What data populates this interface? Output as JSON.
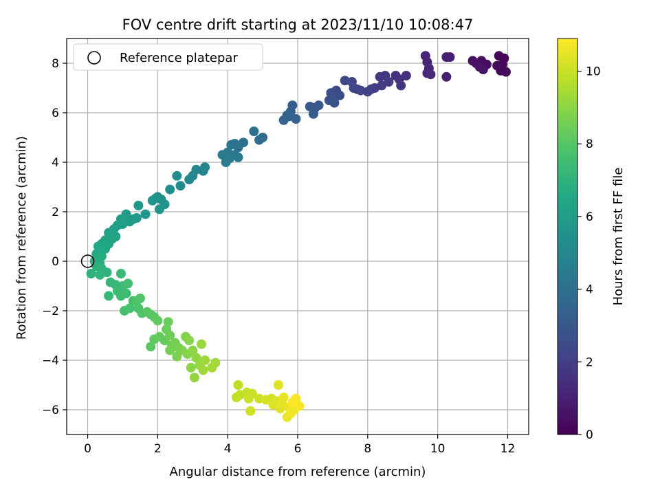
{
  "chart_data": {
    "type": "scatter",
    "title": "FOV centre drift starting at 2023/11/10 10:08:47",
    "xlabel": "Angular distance from reference (arcmin)",
    "ylabel": "Rotation from reference (arcmin)",
    "xlim": [
      -0.6,
      12.6
    ],
    "ylim": [
      -7.0,
      9.0
    ],
    "xticks": [
      0,
      2,
      4,
      6,
      8,
      10,
      12
    ],
    "yticks": [
      -6,
      -4,
      -2,
      0,
      2,
      4,
      6,
      8
    ],
    "grid": true,
    "legend": {
      "placement": "top-left",
      "entries": [
        "Reference platepar"
      ]
    },
    "reference_point": {
      "x": 0,
      "y": 0,
      "label": "Reference platepar"
    },
    "colorbar": {
      "label": "Hours from first FF file",
      "colormap": "viridis",
      "range": [
        0,
        10.9
      ],
      "ticks": [
        0,
        2,
        4,
        6,
        8,
        10
      ]
    },
    "points": [
      {
        "x": 11.9,
        "y": 8.2,
        "t": 0.1
      },
      {
        "x": 11.75,
        "y": 8.3,
        "t": 0.1
      },
      {
        "x": 11.85,
        "y": 7.95,
        "t": 0.2
      },
      {
        "x": 11.8,
        "y": 7.7,
        "t": 0.2
      },
      {
        "x": 11.95,
        "y": 7.65,
        "t": 0.3
      },
      {
        "x": 11.7,
        "y": 7.9,
        "t": 0.3
      },
      {
        "x": 11.4,
        "y": 7.95,
        "t": 0.4
      },
      {
        "x": 11.25,
        "y": 8.1,
        "t": 0.4
      },
      {
        "x": 11.1,
        "y": 8.0,
        "t": 0.5
      },
      {
        "x": 11.0,
        "y": 8.1,
        "t": 0.5
      },
      {
        "x": 11.3,
        "y": 7.75,
        "t": 0.6
      },
      {
        "x": 11.2,
        "y": 7.85,
        "t": 0.6
      },
      {
        "x": 10.35,
        "y": 8.25,
        "t": 0.9
      },
      {
        "x": 10.25,
        "y": 8.25,
        "t": 0.9
      },
      {
        "x": 10.25,
        "y": 7.45,
        "t": 1.0
      },
      {
        "x": 9.65,
        "y": 8.3,
        "t": 1.1
      },
      {
        "x": 9.7,
        "y": 8.05,
        "t": 1.1
      },
      {
        "x": 9.75,
        "y": 7.8,
        "t": 1.2
      },
      {
        "x": 9.7,
        "y": 7.6,
        "t": 1.2
      },
      {
        "x": 9.8,
        "y": 7.55,
        "t": 1.3
      },
      {
        "x": 9.1,
        "y": 7.5,
        "t": 1.5
      },
      {
        "x": 8.8,
        "y": 7.5,
        "t": 1.6
      },
      {
        "x": 8.9,
        "y": 7.35,
        "t": 1.6
      },
      {
        "x": 8.95,
        "y": 7.1,
        "t": 1.7
      },
      {
        "x": 8.5,
        "y": 7.5,
        "t": 1.8
      },
      {
        "x": 8.35,
        "y": 7.45,
        "t": 1.8
      },
      {
        "x": 8.6,
        "y": 7.25,
        "t": 1.9
      },
      {
        "x": 8.4,
        "y": 7.1,
        "t": 1.9
      },
      {
        "x": 8.2,
        "y": 7.0,
        "t": 2.0
      },
      {
        "x": 8.1,
        "y": 6.95,
        "t": 2.0
      },
      {
        "x": 8.0,
        "y": 6.85,
        "t": 2.1
      },
      {
        "x": 7.8,
        "y": 6.9,
        "t": 2.2
      },
      {
        "x": 7.7,
        "y": 6.95,
        "t": 2.2
      },
      {
        "x": 7.6,
        "y": 7.0,
        "t": 2.3
      },
      {
        "x": 7.55,
        "y": 7.25,
        "t": 2.3
      },
      {
        "x": 7.35,
        "y": 7.3,
        "t": 2.4
      },
      {
        "x": 7.1,
        "y": 6.9,
        "t": 2.5
      },
      {
        "x": 7.2,
        "y": 6.7,
        "t": 2.5
      },
      {
        "x": 6.95,
        "y": 6.8,
        "t": 2.6
      },
      {
        "x": 7.0,
        "y": 6.6,
        "t": 2.6
      },
      {
        "x": 7.05,
        "y": 6.4,
        "t": 2.7
      },
      {
        "x": 6.9,
        "y": 6.5,
        "t": 2.7
      },
      {
        "x": 6.6,
        "y": 6.3,
        "t": 3.0
      },
      {
        "x": 6.5,
        "y": 6.2,
        "t": 3.0
      },
      {
        "x": 6.35,
        "y": 6.25,
        "t": 3.1
      },
      {
        "x": 6.45,
        "y": 5.95,
        "t": 3.1
      },
      {
        "x": 5.85,
        "y": 6.3,
        "t": 3.3
      },
      {
        "x": 5.8,
        "y": 6.05,
        "t": 3.3
      },
      {
        "x": 5.75,
        "y": 5.85,
        "t": 3.4
      },
      {
        "x": 5.95,
        "y": 5.75,
        "t": 3.4
      },
      {
        "x": 5.6,
        "y": 5.7,
        "t": 3.5
      },
      {
        "x": 5.7,
        "y": 5.9,
        "t": 3.5
      },
      {
        "x": 5.0,
        "y": 5.0,
        "t": 3.9
      },
      {
        "x": 4.9,
        "y": 4.9,
        "t": 3.9
      },
      {
        "x": 4.75,
        "y": 5.25,
        "t": 4.0
      },
      {
        "x": 4.45,
        "y": 4.8,
        "t": 4.1
      },
      {
        "x": 4.3,
        "y": 4.6,
        "t": 4.1
      },
      {
        "x": 4.2,
        "y": 4.75,
        "t": 4.2
      },
      {
        "x": 4.1,
        "y": 4.7,
        "t": 4.2
      },
      {
        "x": 4.0,
        "y": 4.4,
        "t": 4.3
      },
      {
        "x": 4.2,
        "y": 4.3,
        "t": 4.3
      },
      {
        "x": 4.3,
        "y": 4.2,
        "t": 4.4
      },
      {
        "x": 3.85,
        "y": 4.3,
        "t": 4.4
      },
      {
        "x": 4.05,
        "y": 4.15,
        "t": 4.5
      },
      {
        "x": 3.95,
        "y": 4.0,
        "t": 4.5
      },
      {
        "x": 3.35,
        "y": 3.8,
        "t": 4.9
      },
      {
        "x": 3.3,
        "y": 3.65,
        "t": 4.9
      },
      {
        "x": 3.1,
        "y": 3.7,
        "t": 5.0
      },
      {
        "x": 3.0,
        "y": 3.45,
        "t": 5.0
      },
      {
        "x": 2.9,
        "y": 3.3,
        "t": 5.1
      },
      {
        "x": 2.55,
        "y": 3.45,
        "t": 5.2
      },
      {
        "x": 2.65,
        "y": 3.05,
        "t": 5.2
      },
      {
        "x": 2.35,
        "y": 2.9,
        "t": 5.3
      },
      {
        "x": 2.1,
        "y": 2.5,
        "t": 5.4
      },
      {
        "x": 2.0,
        "y": 2.6,
        "t": 5.4
      },
      {
        "x": 1.95,
        "y": 2.55,
        "t": 5.5
      },
      {
        "x": 2.2,
        "y": 2.3,
        "t": 5.5
      },
      {
        "x": 2.05,
        "y": 2.1,
        "t": 5.6
      },
      {
        "x": 1.85,
        "y": 2.45,
        "t": 5.6
      },
      {
        "x": 1.45,
        "y": 2.25,
        "t": 5.7
      },
      {
        "x": 1.65,
        "y": 1.9,
        "t": 5.7
      },
      {
        "x": 1.4,
        "y": 1.75,
        "t": 5.8
      },
      {
        "x": 1.3,
        "y": 1.7,
        "t": 5.8
      },
      {
        "x": 1.1,
        "y": 1.9,
        "t": 5.9
      },
      {
        "x": 1.2,
        "y": 1.6,
        "t": 5.9
      },
      {
        "x": 0.95,
        "y": 1.7,
        "t": 6.0
      },
      {
        "x": 1.0,
        "y": 1.5,
        "t": 6.0
      },
      {
        "x": 0.85,
        "y": 1.45,
        "t": 6.1
      },
      {
        "x": 0.75,
        "y": 1.3,
        "t": 6.1
      },
      {
        "x": 0.6,
        "y": 1.15,
        "t": 6.2
      },
      {
        "x": 0.8,
        "y": 1.0,
        "t": 6.2
      },
      {
        "x": 0.7,
        "y": 0.9,
        "t": 6.3
      },
      {
        "x": 0.5,
        "y": 0.85,
        "t": 6.3
      },
      {
        "x": 0.6,
        "y": 0.7,
        "t": 6.4
      },
      {
        "x": 0.4,
        "y": 0.7,
        "t": 6.4
      },
      {
        "x": 0.3,
        "y": 0.6,
        "t": 6.5
      },
      {
        "x": 0.5,
        "y": 0.5,
        "t": 6.5
      },
      {
        "x": 0.35,
        "y": 0.4,
        "t": 6.6
      },
      {
        "x": 0.25,
        "y": 0.3,
        "t": 6.6
      },
      {
        "x": 0.4,
        "y": 0.2,
        "t": 6.7
      },
      {
        "x": 0.3,
        "y": 0.1,
        "t": 6.7
      },
      {
        "x": 0.2,
        "y": 0.0,
        "t": 6.8
      },
      {
        "x": 0.35,
        "y": -0.1,
        "t": 6.8
      },
      {
        "x": 0.25,
        "y": -0.2,
        "t": 6.9
      },
      {
        "x": 0.1,
        "y": -0.5,
        "t": 6.9
      },
      {
        "x": 0.4,
        "y": -0.3,
        "t": 7.0
      },
      {
        "x": 0.55,
        "y": -0.45,
        "t": 7.0
      },
      {
        "x": 0.35,
        "y": -0.55,
        "t": 7.1
      },
      {
        "x": 0.65,
        "y": -0.85,
        "t": 7.2
      },
      {
        "x": 0.6,
        "y": -1.4,
        "t": 7.2
      },
      {
        "x": 0.8,
        "y": -0.95,
        "t": 7.3
      },
      {
        "x": 0.95,
        "y": -0.5,
        "t": 7.3
      },
      {
        "x": 0.85,
        "y": -1.2,
        "t": 7.4
      },
      {
        "x": 1.0,
        "y": -1.0,
        "t": 7.4
      },
      {
        "x": 0.95,
        "y": -1.4,
        "t": 7.5
      },
      {
        "x": 1.1,
        "y": -1.3,
        "t": 7.5
      },
      {
        "x": 1.05,
        "y": -2.0,
        "t": 7.6
      },
      {
        "x": 1.15,
        "y": -0.9,
        "t": 7.6
      },
      {
        "x": 1.3,
        "y": -1.6,
        "t": 7.7
      },
      {
        "x": 1.2,
        "y": -1.9,
        "t": 7.7
      },
      {
        "x": 1.4,
        "y": -1.6,
        "t": 7.8
      },
      {
        "x": 1.45,
        "y": -1.9,
        "t": 7.8
      },
      {
        "x": 1.5,
        "y": -1.5,
        "t": 7.9
      },
      {
        "x": 1.55,
        "y": -2.1,
        "t": 7.9
      },
      {
        "x": 1.7,
        "y": -2.05,
        "t": 8.0
      },
      {
        "x": 1.8,
        "y": -2.15,
        "t": 8.0
      },
      {
        "x": 1.9,
        "y": -2.25,
        "t": 8.1
      },
      {
        "x": 1.8,
        "y": -3.45,
        "t": 8.1
      },
      {
        "x": 2.0,
        "y": -2.4,
        "t": 8.2
      },
      {
        "x": 1.9,
        "y": -3.15,
        "t": 8.2
      },
      {
        "x": 2.05,
        "y": -3.05,
        "t": 8.3
      },
      {
        "x": 2.2,
        "y": -3.2,
        "t": 8.3
      },
      {
        "x": 2.3,
        "y": -2.45,
        "t": 8.4
      },
      {
        "x": 2.25,
        "y": -2.75,
        "t": 8.4
      },
      {
        "x": 2.35,
        "y": -3.0,
        "t": 8.5
      },
      {
        "x": 2.4,
        "y": -3.4,
        "t": 8.5
      },
      {
        "x": 2.5,
        "y": -3.3,
        "t": 8.6
      },
      {
        "x": 2.35,
        "y": -3.6,
        "t": 8.6
      },
      {
        "x": 2.6,
        "y": -3.5,
        "t": 8.7
      },
      {
        "x": 2.55,
        "y": -3.85,
        "t": 8.7
      },
      {
        "x": 2.7,
        "y": -3.6,
        "t": 8.8
      },
      {
        "x": 2.8,
        "y": -3.05,
        "t": 8.8
      },
      {
        "x": 2.9,
        "y": -3.2,
        "t": 8.9
      },
      {
        "x": 2.85,
        "y": -3.75,
        "t": 8.9
      },
      {
        "x": 3.0,
        "y": -3.6,
        "t": 9.0
      },
      {
        "x": 2.95,
        "y": -4.3,
        "t": 9.0
      },
      {
        "x": 3.05,
        "y": -4.7,
        "t": 9.1
      },
      {
        "x": 3.1,
        "y": -3.9,
        "t": 9.1
      },
      {
        "x": 3.2,
        "y": -4.2,
        "t": 9.2
      },
      {
        "x": 3.25,
        "y": -3.35,
        "t": 9.2
      },
      {
        "x": 3.35,
        "y": -4.0,
        "t": 9.3
      },
      {
        "x": 3.3,
        "y": -4.4,
        "t": 9.3
      },
      {
        "x": 3.65,
        "y": -4.1,
        "t": 9.4
      },
      {
        "x": 3.55,
        "y": -4.3,
        "t": 9.4
      },
      {
        "x": 4.3,
        "y": -5.0,
        "t": 9.8
      },
      {
        "x": 4.35,
        "y": -5.4,
        "t": 9.8
      },
      {
        "x": 4.25,
        "y": -5.5,
        "t": 9.9
      },
      {
        "x": 4.55,
        "y": -5.3,
        "t": 9.9
      },
      {
        "x": 4.6,
        "y": -5.55,
        "t": 10.0
      },
      {
        "x": 4.7,
        "y": -5.35,
        "t": 10.0
      },
      {
        "x": 4.65,
        "y": -6.05,
        "t": 10.1
      },
      {
        "x": 4.9,
        "y": -5.55,
        "t": 10.1
      },
      {
        "x": 5.1,
        "y": -5.6,
        "t": 10.2
      },
      {
        "x": 5.25,
        "y": -5.55,
        "t": 10.2
      },
      {
        "x": 5.3,
        "y": -5.8,
        "t": 10.3
      },
      {
        "x": 5.4,
        "y": -5.65,
        "t": 10.3
      },
      {
        "x": 5.45,
        "y": -5.0,
        "t": 10.4
      },
      {
        "x": 5.5,
        "y": -5.95,
        "t": 10.4
      },
      {
        "x": 5.55,
        "y": -5.75,
        "t": 10.5
      },
      {
        "x": 5.6,
        "y": -5.5,
        "t": 10.5
      },
      {
        "x": 5.7,
        "y": -6.3,
        "t": 10.6
      },
      {
        "x": 5.75,
        "y": -5.9,
        "t": 10.6
      },
      {
        "x": 5.8,
        "y": -6.15,
        "t": 10.7
      },
      {
        "x": 5.9,
        "y": -6.0,
        "t": 10.7
      },
      {
        "x": 5.95,
        "y": -5.55,
        "t": 10.8
      },
      {
        "x": 6.05,
        "y": -5.85,
        "t": 10.8
      },
      {
        "x": 5.85,
        "y": -5.7,
        "t": 10.9
      }
    ]
  }
}
